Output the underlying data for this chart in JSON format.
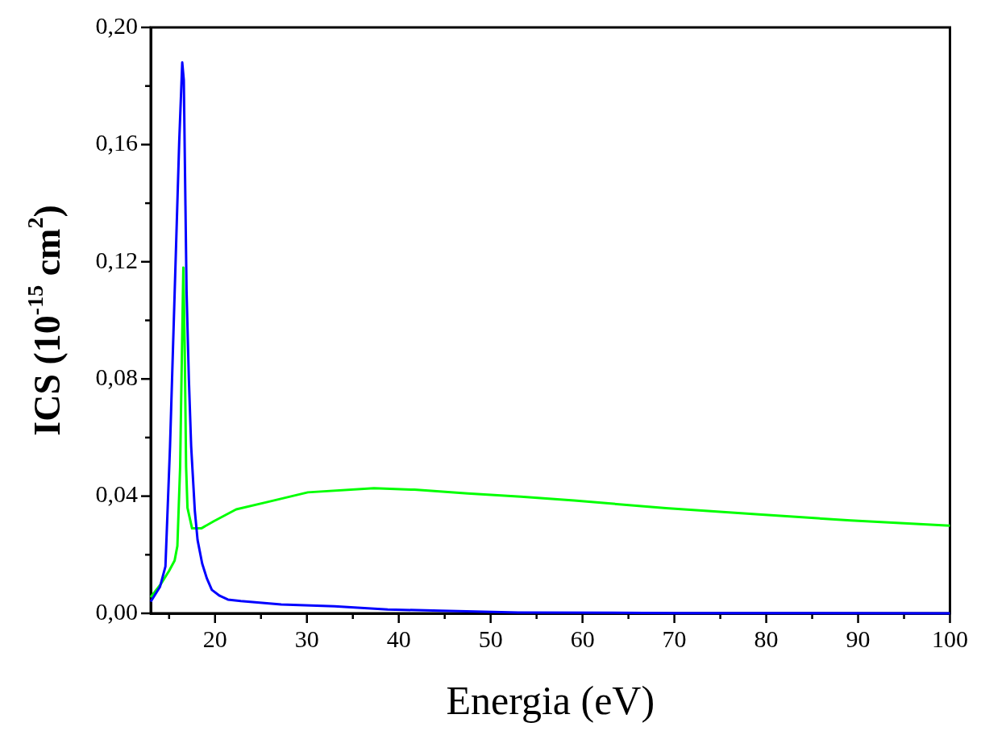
{
  "chart_data": {
    "type": "line",
    "xlabel": "Energia (eV)",
    "ylabel": "ICS (10$^{-15}$ cm$^{2}$)",
    "xlim": [
      13,
      100
    ],
    "ylim": [
      0,
      0.2
    ],
    "xticks": [
      {
        "value": 15,
        "label": null
      },
      20,
      {
        "value": 25,
        "label": null
      },
      30,
      {
        "value": 35,
        "label": null
      },
      40,
      {
        "value": 45,
        "label": null
      },
      50,
      {
        "value": 55,
        "label": null
      },
      60,
      {
        "value": 65,
        "label": null
      },
      70,
      {
        "value": 75,
        "label": null
      },
      80,
      {
        "value": 85,
        "label": null
      },
      90,
      {
        "value": 95,
        "label": null
      },
      100
    ],
    "yticks": [
      {
        "value": 0,
        "label": "0,00"
      },
      {
        "value": 0.02,
        "label": null
      },
      {
        "value": 0.04,
        "label": "0,04"
      },
      {
        "value": 0.06,
        "label": null
      },
      {
        "value": 0.08,
        "label": "0,08"
      },
      {
        "value": 0.1,
        "label": null
      },
      {
        "value": 0.12,
        "label": "0,12"
      },
      {
        "value": 0.14,
        "label": null
      },
      {
        "value": 0.16,
        "label": "0,16"
      },
      {
        "value": 0.18,
        "label": null
      },
      {
        "value": 0.2,
        "label": "0,20"
      }
    ],
    "grid": false,
    "legend": false,
    "series": [
      {
        "color": "#0000ff",
        "x": [
          13,
          14,
          14.6,
          15.1,
          15.6,
          16.1,
          16.43,
          16.6,
          16.9,
          17.15,
          17.4,
          17.8,
          18.1,
          18.6,
          19.1,
          19.65,
          20.5,
          21.4,
          22.8,
          27.2,
          33,
          38.8,
          44.6,
          53,
          70,
          100
        ],
        "values": [
          0.004,
          0.009,
          0.016,
          0.057,
          0.109,
          0.161,
          0.188,
          0.182,
          0.11,
          0.08,
          0.057,
          0.035,
          0.025,
          0.017,
          0.012,
          0.008,
          0.006,
          0.0047,
          0.0042,
          0.003,
          0.0024,
          0.0013,
          0.0009,
          0.0003,
          0.0001,
          0
        ]
      },
      {
        "color": "#00ff00",
        "x": [
          13,
          14.1,
          15,
          15.6,
          15.9,
          16.2,
          16.4,
          16.55,
          16.7,
          16.85,
          17,
          17.5,
          18.5,
          19.9,
          22.3,
          25.7,
          30.1,
          37.3,
          41.7,
          47.5,
          53.3,
          59.1,
          69.1,
          79.2,
          89.2,
          100
        ],
        "values": [
          0.0055,
          0.01,
          0.0145,
          0.018,
          0.023,
          0.05,
          0.09,
          0.118,
          0.09,
          0.05,
          0.036,
          0.029,
          0.029,
          0.0315,
          0.0355,
          0.038,
          0.0413,
          0.0427,
          0.0422,
          0.0409,
          0.0398,
          0.0385,
          0.0359,
          0.0338,
          0.0317,
          0.0299
        ]
      }
    ]
  }
}
